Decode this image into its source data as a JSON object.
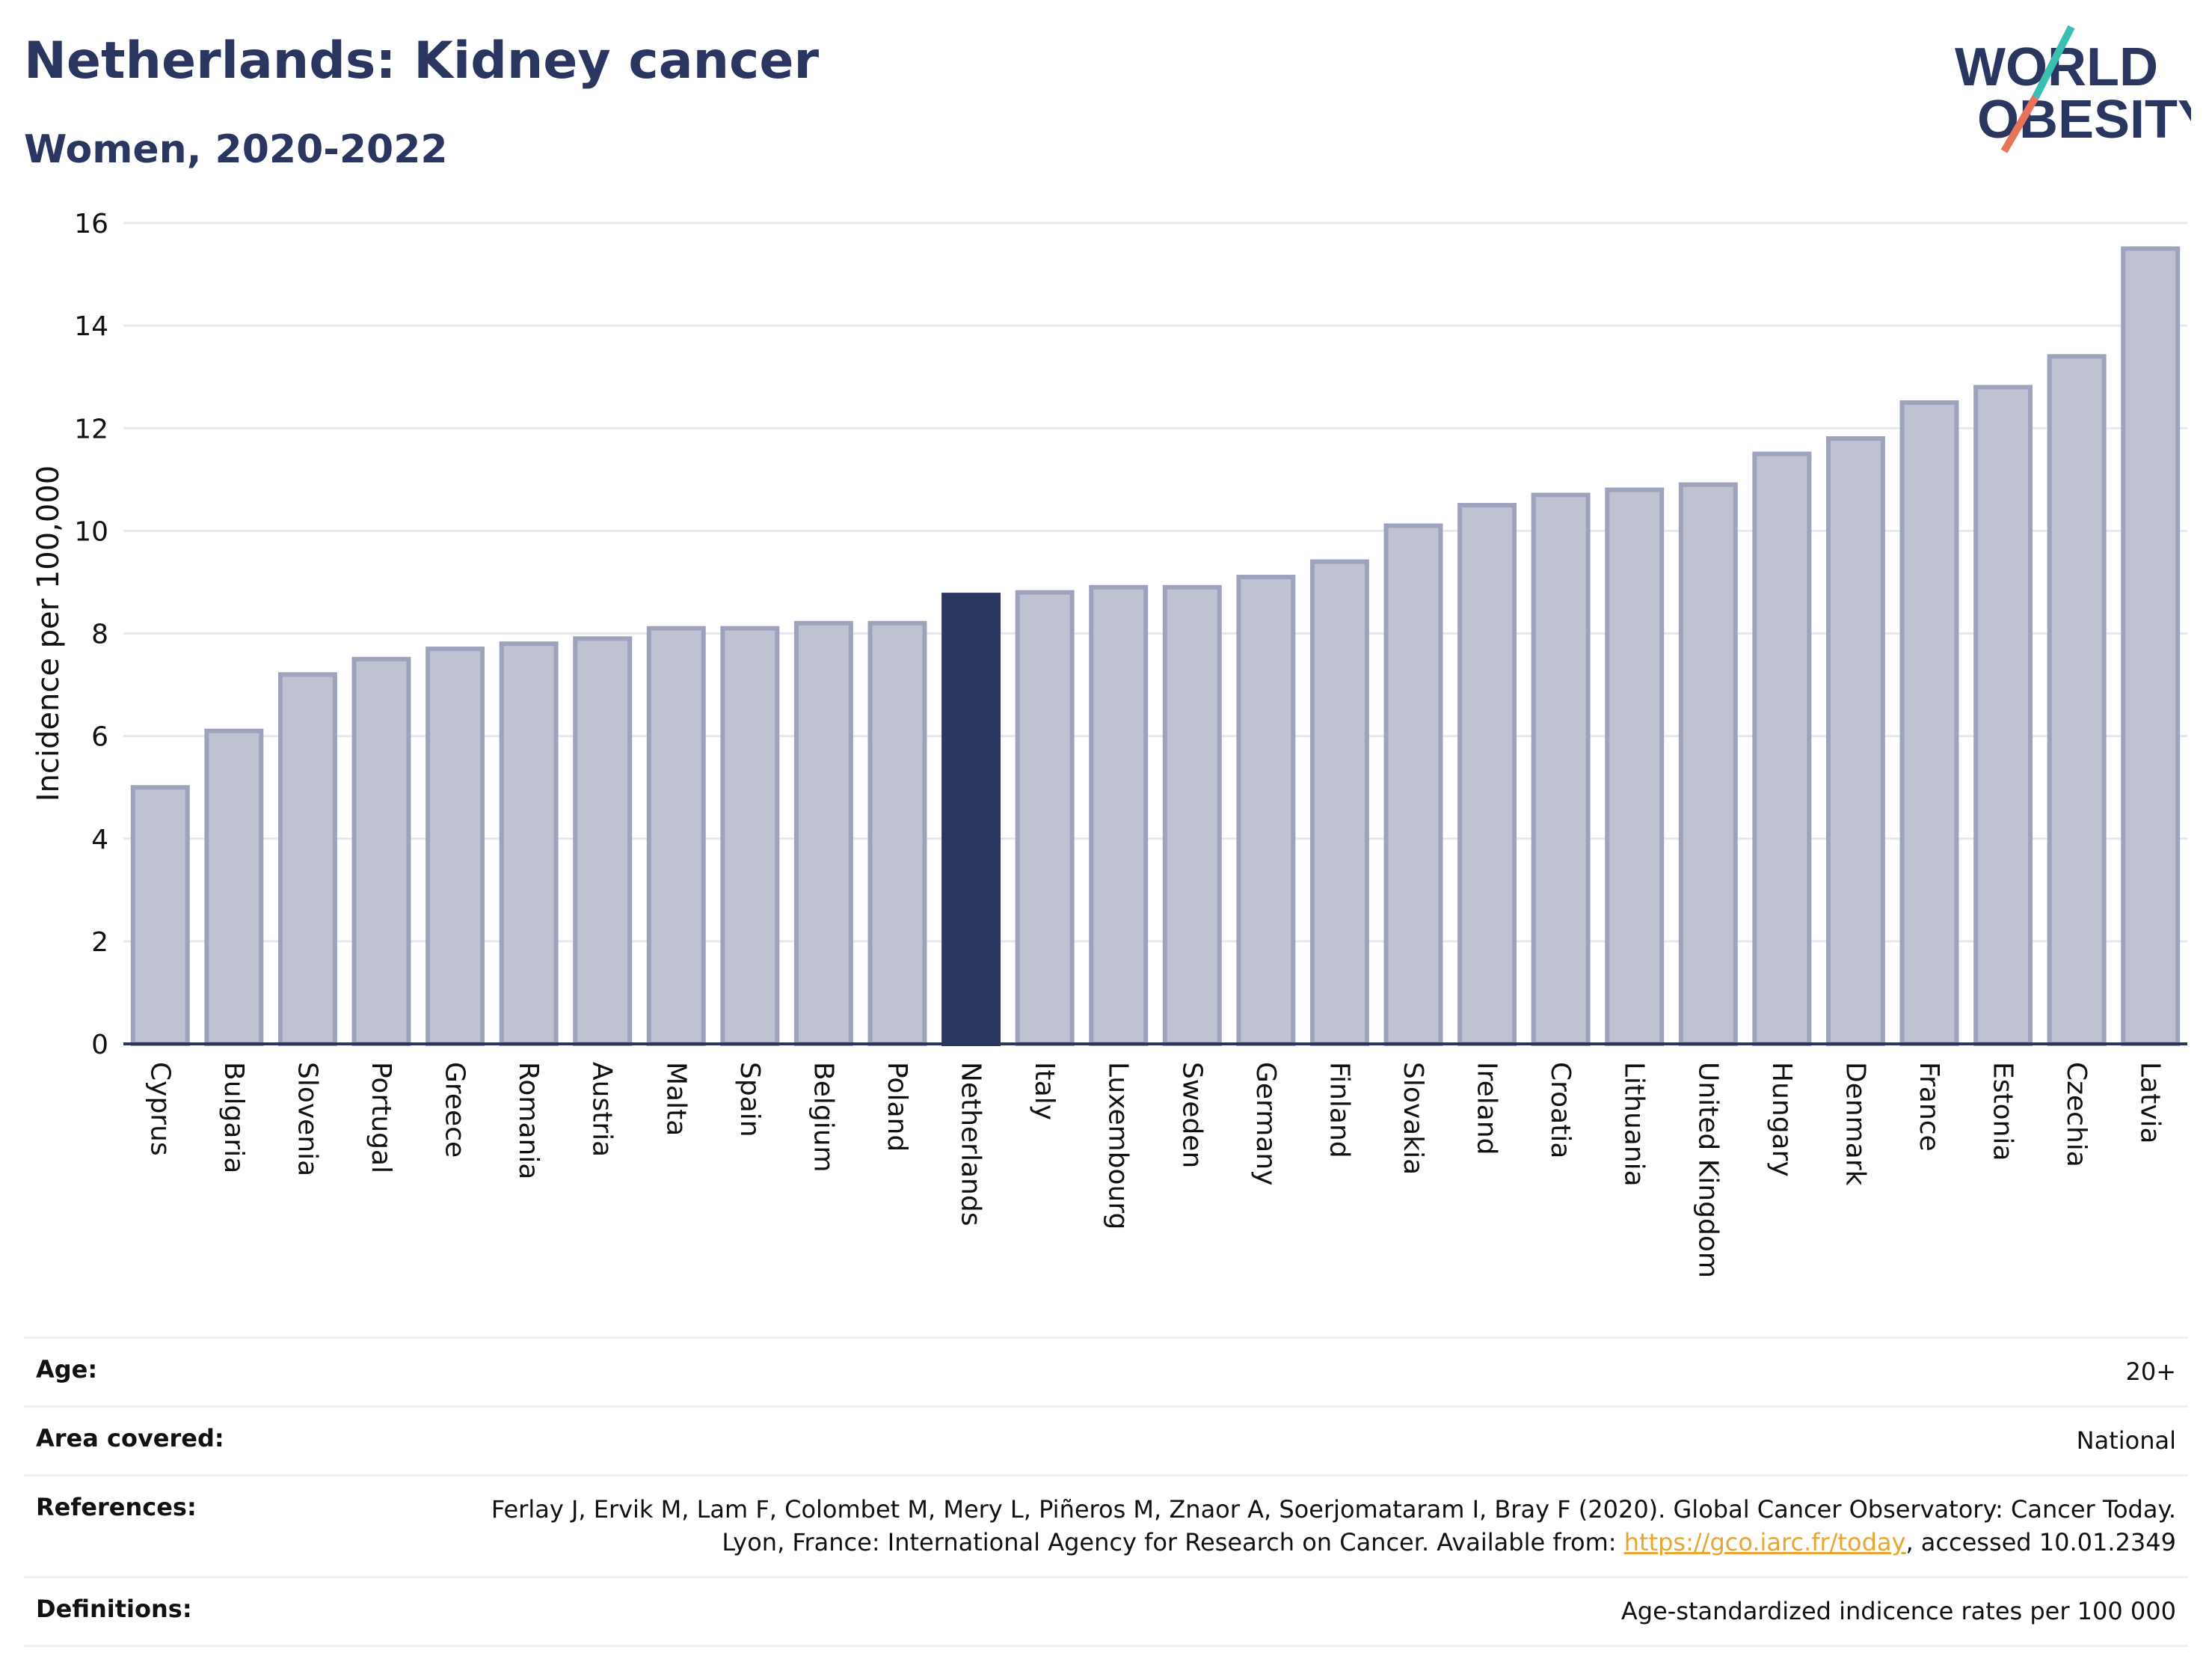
{
  "header": {
    "title": "Netherlands: Kidney cancer",
    "subtitle": "Women, 2020-2022"
  },
  "logo": {
    "line1": "WORLD",
    "line2": "OBESITY",
    "colors": {
      "text": "#2a365f",
      "slash_top": "#3bbfb0",
      "slash_bottom": "#e8735a"
    }
  },
  "chart_data": {
    "type": "bar",
    "title": "Netherlands: Kidney cancer",
    "subtitle": "Women, 2020-2022",
    "ylabel": "Incidence per 100,000",
    "xlabel": "",
    "ylim": [
      0,
      16
    ],
    "yticks": [
      0,
      2,
      4,
      6,
      8,
      10,
      12,
      14,
      16
    ],
    "grid": true,
    "highlight": "Netherlands",
    "colors": {
      "bar": "#bfc2d0",
      "bar_edge": "#9ea3bd",
      "highlight": "#2a365f",
      "axis": "#2a365f",
      "grid": "#e6e8ee"
    },
    "categories": [
      "Cyprus",
      "Bulgaria",
      "Slovenia",
      "Portugal",
      "Greece",
      "Romania",
      "Austria",
      "Malta",
      "Spain",
      "Belgium",
      "Poland",
      "Netherlands",
      "Italy",
      "Luxembourg",
      "Sweden",
      "Germany",
      "Finland",
      "Slovakia",
      "Ireland",
      "Croatia",
      "Lithuania",
      "United Kingdom",
      "Hungary",
      "Denmark",
      "France",
      "Estonia",
      "Czechia",
      "Latvia"
    ],
    "values": [
      5.0,
      6.1,
      7.2,
      7.5,
      7.7,
      7.8,
      7.9,
      8.1,
      8.1,
      8.2,
      8.2,
      8.75,
      8.8,
      8.9,
      8.9,
      9.1,
      9.4,
      10.1,
      10.5,
      10.7,
      10.8,
      10.9,
      11.5,
      11.8,
      12.5,
      12.8,
      13.4,
      15.5
    ]
  },
  "meta": {
    "age_label": "Age:",
    "age_value": "20+",
    "area_label": "Area covered:",
    "area_value": "National",
    "references_label": "References:",
    "references_text": "Ferlay J, Ervik M, Lam F, Colombet M, Mery L, Piñeros M, Znaor A, Soerjomataram I, Bray F (2020). Global Cancer Observatory: Cancer Today. Lyon, France: International Agency for Research on Cancer. Available from: ",
    "references_link": "https://gco.iarc.fr/today",
    "references_suffix": ", accessed 10.01.2349",
    "definitions_label": "Definitions:",
    "definitions_value": "Age-standardized indicence rates per 100 000"
  }
}
